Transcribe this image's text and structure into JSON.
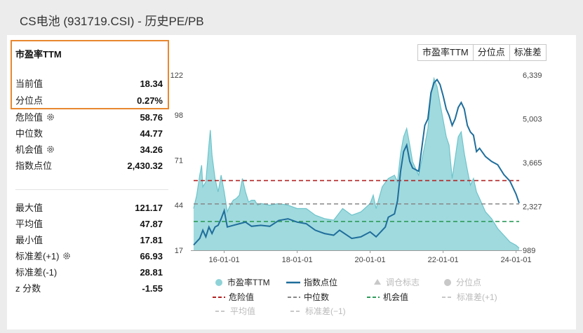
{
  "header": {
    "title": "CS电池 (931719.CSI) - 历史PE/PB"
  },
  "stats": {
    "title": "市盈率TTM",
    "current": {
      "label": "当前值",
      "value": "18.34"
    },
    "percentile": {
      "label": "分位点",
      "value": "0.27%"
    },
    "danger": {
      "label": "危险值",
      "value": "58.76"
    },
    "median": {
      "label": "中位数",
      "value": "44.77"
    },
    "opportunity": {
      "label": "机会值",
      "value": "34.26"
    },
    "index_points": {
      "label": "指数点位",
      "value": "2,430.32"
    },
    "max": {
      "label": "最大值",
      "value": "121.17"
    },
    "mean": {
      "label": "平均值",
      "value": "47.87"
    },
    "min": {
      "label": "最小值",
      "value": "17.81"
    },
    "std_plus": {
      "label": "标准差(+1)",
      "value": "66.93"
    },
    "std_minus": {
      "label": "标准差(-1)",
      "value": "28.81"
    },
    "zscore": {
      "label": "z 分数",
      "value": "-1.55"
    }
  },
  "buttons": {
    "pe": "市盈率TTM",
    "percentile": "分位点",
    "std": "标准差"
  },
  "legend": {
    "pe": "市盈率TTM",
    "index": "指数点位",
    "adjust": "调仓标志",
    "percentile": "分位点",
    "danger": "危险值",
    "median": "中位数",
    "opportunity": "机会值",
    "std_plus": "标准差(+1)",
    "mean": "平均值",
    "std_minus": "标准差(−1)"
  },
  "colors": {
    "pe_fill": "#8fd3d8",
    "pe_line": "#6cc4cb",
    "index_line": "#1f6e9c",
    "danger": "#b22222",
    "median": "#888888",
    "opportunity": "#2e9b5a",
    "dim": "#c8c8c8",
    "highlight": "#e8872f"
  },
  "chart_data": {
    "type": "area",
    "left_axis": {
      "ticks": [
        17,
        44,
        71,
        98,
        122
      ],
      "ylim": [
        17,
        122
      ]
    },
    "right_axis": {
      "ticks": [
        "989",
        "2,327",
        "3,665",
        "5,003",
        "6,339"
      ],
      "ylim": [
        989,
        6339
      ]
    },
    "x_ticks": [
      "16-01-01",
      "18-01-01",
      "20-01-01",
      "22-01-01",
      "24-01-01"
    ],
    "reference_lines": {
      "danger": 58.76,
      "median": 44.77,
      "opportunity": 34.26
    },
    "series": [
      {
        "name": "市盈率TTM",
        "values": [
          [
            "15-03-01",
            42
          ],
          [
            "15-04-01",
            50
          ],
          [
            "15-05-01",
            62
          ],
          [
            "15-05-20",
            68
          ],
          [
            "15-06-01",
            55
          ],
          [
            "15-07-01",
            58
          ],
          [
            "15-08-01",
            80
          ],
          [
            "15-08-15",
            89
          ],
          [
            "15-09-01",
            74
          ],
          [
            "15-10-01",
            60
          ],
          [
            "15-11-01",
            52
          ],
          [
            "15-12-01",
            62
          ],
          [
            "16-01-01",
            52
          ],
          [
            "16-02-01",
            40
          ],
          [
            "16-03-01",
            44
          ],
          [
            "16-04-01",
            47
          ],
          [
            "16-05-01",
            48
          ],
          [
            "16-06-01",
            50
          ],
          [
            "16-07-01",
            60
          ],
          [
            "16-08-01",
            52
          ],
          [
            "16-09-01",
            46
          ],
          [
            "16-10-01",
            47
          ],
          [
            "16-11-01",
            47
          ],
          [
            "16-12-01",
            44
          ],
          [
            "17-01-01",
            45
          ],
          [
            "17-04-01",
            44
          ],
          [
            "17-07-01",
            45
          ],
          [
            "17-10-01",
            44
          ],
          [
            "18-01-01",
            42
          ],
          [
            "18-04-01",
            42
          ],
          [
            "18-07-01",
            38
          ],
          [
            "18-10-01",
            36
          ],
          [
            "19-01-01",
            35
          ],
          [
            "19-04-01",
            42
          ],
          [
            "19-07-01",
            38
          ],
          [
            "19-10-01",
            40
          ],
          [
            "20-01-01",
            45
          ],
          [
            "20-02-01",
            50
          ],
          [
            "20-03-01",
            42
          ],
          [
            "20-05-01",
            55
          ],
          [
            "20-07-01",
            60
          ],
          [
            "20-09-01",
            62
          ],
          [
            "20-10-01",
            58
          ],
          [
            "20-11-01",
            75
          ],
          [
            "20-12-01",
            85
          ],
          [
            "21-01-01",
            90
          ],
          [
            "21-02-01",
            80
          ],
          [
            "21-03-01",
            70
          ],
          [
            "21-05-01",
            62
          ],
          [
            "21-07-01",
            80
          ],
          [
            "21-08-01",
            90
          ],
          [
            "21-09-01",
            110
          ],
          [
            "21-10-01",
            120
          ],
          [
            "21-11-01",
            115
          ],
          [
            "21-12-01",
            105
          ],
          [
            "22-01-01",
            95
          ],
          [
            "22-02-01",
            85
          ],
          [
            "22-03-01",
            80
          ],
          [
            "22-04-01",
            60
          ],
          [
            "22-05-01",
            72
          ],
          [
            "22-06-01",
            85
          ],
          [
            "22-07-01",
            88
          ],
          [
            "22-08-01",
            75
          ],
          [
            "22-09-01",
            65
          ],
          [
            "22-10-01",
            56
          ],
          [
            "22-11-01",
            60
          ],
          [
            "22-12-01",
            52
          ],
          [
            "23-01-01",
            48
          ],
          [
            "23-03-01",
            40
          ],
          [
            "23-05-01",
            36
          ],
          [
            "23-07-01",
            30
          ],
          [
            "23-09-01",
            26
          ],
          [
            "23-11-01",
            22
          ],
          [
            "24-01-01",
            20
          ],
          [
            "24-02-01",
            18.34
          ]
        ]
      },
      {
        "name": "指数点位",
        "values": [
          [
            "15-03-01",
            1150
          ],
          [
            "15-05-01",
            1350
          ],
          [
            "15-06-01",
            1600
          ],
          [
            "15-07-01",
            1400
          ],
          [
            "15-08-01",
            1700
          ],
          [
            "15-09-01",
            1500
          ],
          [
            "15-10-01",
            1700
          ],
          [
            "15-11-01",
            1750
          ],
          [
            "15-12-01",
            1950
          ],
          [
            "16-01-01",
            2200
          ],
          [
            "16-02-01",
            1700
          ],
          [
            "16-04-01",
            1750
          ],
          [
            "16-06-01",
            1800
          ],
          [
            "16-08-01",
            1850
          ],
          [
            "16-10-01",
            1720
          ],
          [
            "17-01-01",
            1750
          ],
          [
            "17-04-01",
            1720
          ],
          [
            "17-07-01",
            1900
          ],
          [
            "17-10-01",
            1950
          ],
          [
            "18-01-01",
            1850
          ],
          [
            "18-04-01",
            1800
          ],
          [
            "18-07-01",
            1600
          ],
          [
            "18-10-01",
            1500
          ],
          [
            "19-01-01",
            1450
          ],
          [
            "19-03-01",
            1600
          ],
          [
            "19-07-01",
            1350
          ],
          [
            "19-10-01",
            1400
          ],
          [
            "20-01-01",
            1550
          ],
          [
            "20-03-01",
            1400
          ],
          [
            "20-06-01",
            1700
          ],
          [
            "20-07-01",
            2000
          ],
          [
            "20-09-01",
            2100
          ],
          [
            "20-10-01",
            2500
          ],
          [
            "20-11-01",
            3400
          ],
          [
            "20-12-01",
            4000
          ],
          [
            "21-01-01",
            4200
          ],
          [
            "21-02-01",
            3700
          ],
          [
            "21-03-01",
            3500
          ],
          [
            "21-05-01",
            3400
          ],
          [
            "21-07-01",
            4800
          ],
          [
            "21-08-01",
            5000
          ],
          [
            "21-09-01",
            5800
          ],
          [
            "21-10-01",
            6100
          ],
          [
            "21-11-01",
            6200
          ],
          [
            "21-12-01",
            6050
          ],
          [
            "22-01-01",
            5700
          ],
          [
            "22-02-01",
            5300
          ],
          [
            "22-03-01",
            5100
          ],
          [
            "22-04-01",
            4800
          ],
          [
            "22-05-01",
            5000
          ],
          [
            "22-06-01",
            5350
          ],
          [
            "22-07-01",
            5500
          ],
          [
            "22-08-01",
            5300
          ],
          [
            "22-09-01",
            4800
          ],
          [
            "22-10-01",
            4600
          ],
          [
            "22-11-01",
            4500
          ],
          [
            "22-12-01",
            4000
          ],
          [
            "23-01-01",
            4100
          ],
          [
            "23-03-01",
            3850
          ],
          [
            "23-05-01",
            3700
          ],
          [
            "23-07-01",
            3600
          ],
          [
            "23-09-01",
            3300
          ],
          [
            "23-11-01",
            3100
          ],
          [
            "24-01-01",
            2700
          ],
          [
            "24-02-01",
            2430
          ]
        ]
      }
    ]
  }
}
